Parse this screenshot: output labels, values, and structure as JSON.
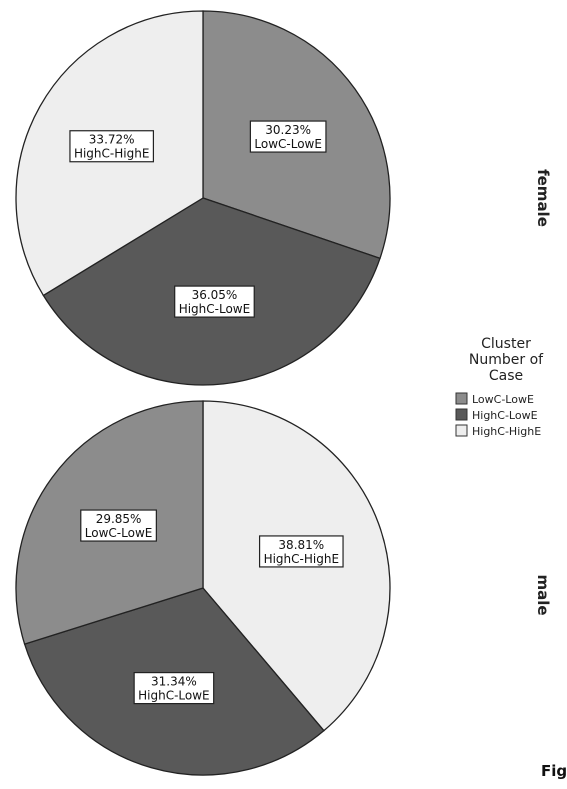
{
  "chart_data": [
    {
      "type": "pie",
      "panel_label": "female",
      "slices": [
        {
          "label": "LowC-LowE",
          "value": 30.23,
          "display": "30.23%",
          "color": "#8c8c8c"
        },
        {
          "label": "HighC-LowE",
          "value": 36.05,
          "display": "36.05%",
          "color": "#595959"
        },
        {
          "label": "HighC-HighE",
          "value": 33.72,
          "display": "33.72%",
          "color": "#eeeeee"
        }
      ]
    },
    {
      "type": "pie",
      "panel_label": "male",
      "slices": [
        {
          "label": "HighC-HighE",
          "value": 38.81,
          "display": "38.81%",
          "color": "#eeeeee"
        },
        {
          "label": "HighC-LowE",
          "value": 31.34,
          "display": "31.34%",
          "color": "#595959"
        },
        {
          "label": "LowC-LowE",
          "value": 29.85,
          "display": "29.85%",
          "color": "#8c8c8c"
        }
      ]
    }
  ],
  "legend": {
    "title_lines": [
      "Cluster",
      "Number of",
      "Case"
    ],
    "items": [
      {
        "label": "LowC-LowE",
        "color": "#8c8c8c"
      },
      {
        "label": "HighC-LowE",
        "color": "#595959"
      },
      {
        "label": "HighC-HighE",
        "color": "#eeeeee"
      }
    ]
  },
  "caption": "Fig"
}
